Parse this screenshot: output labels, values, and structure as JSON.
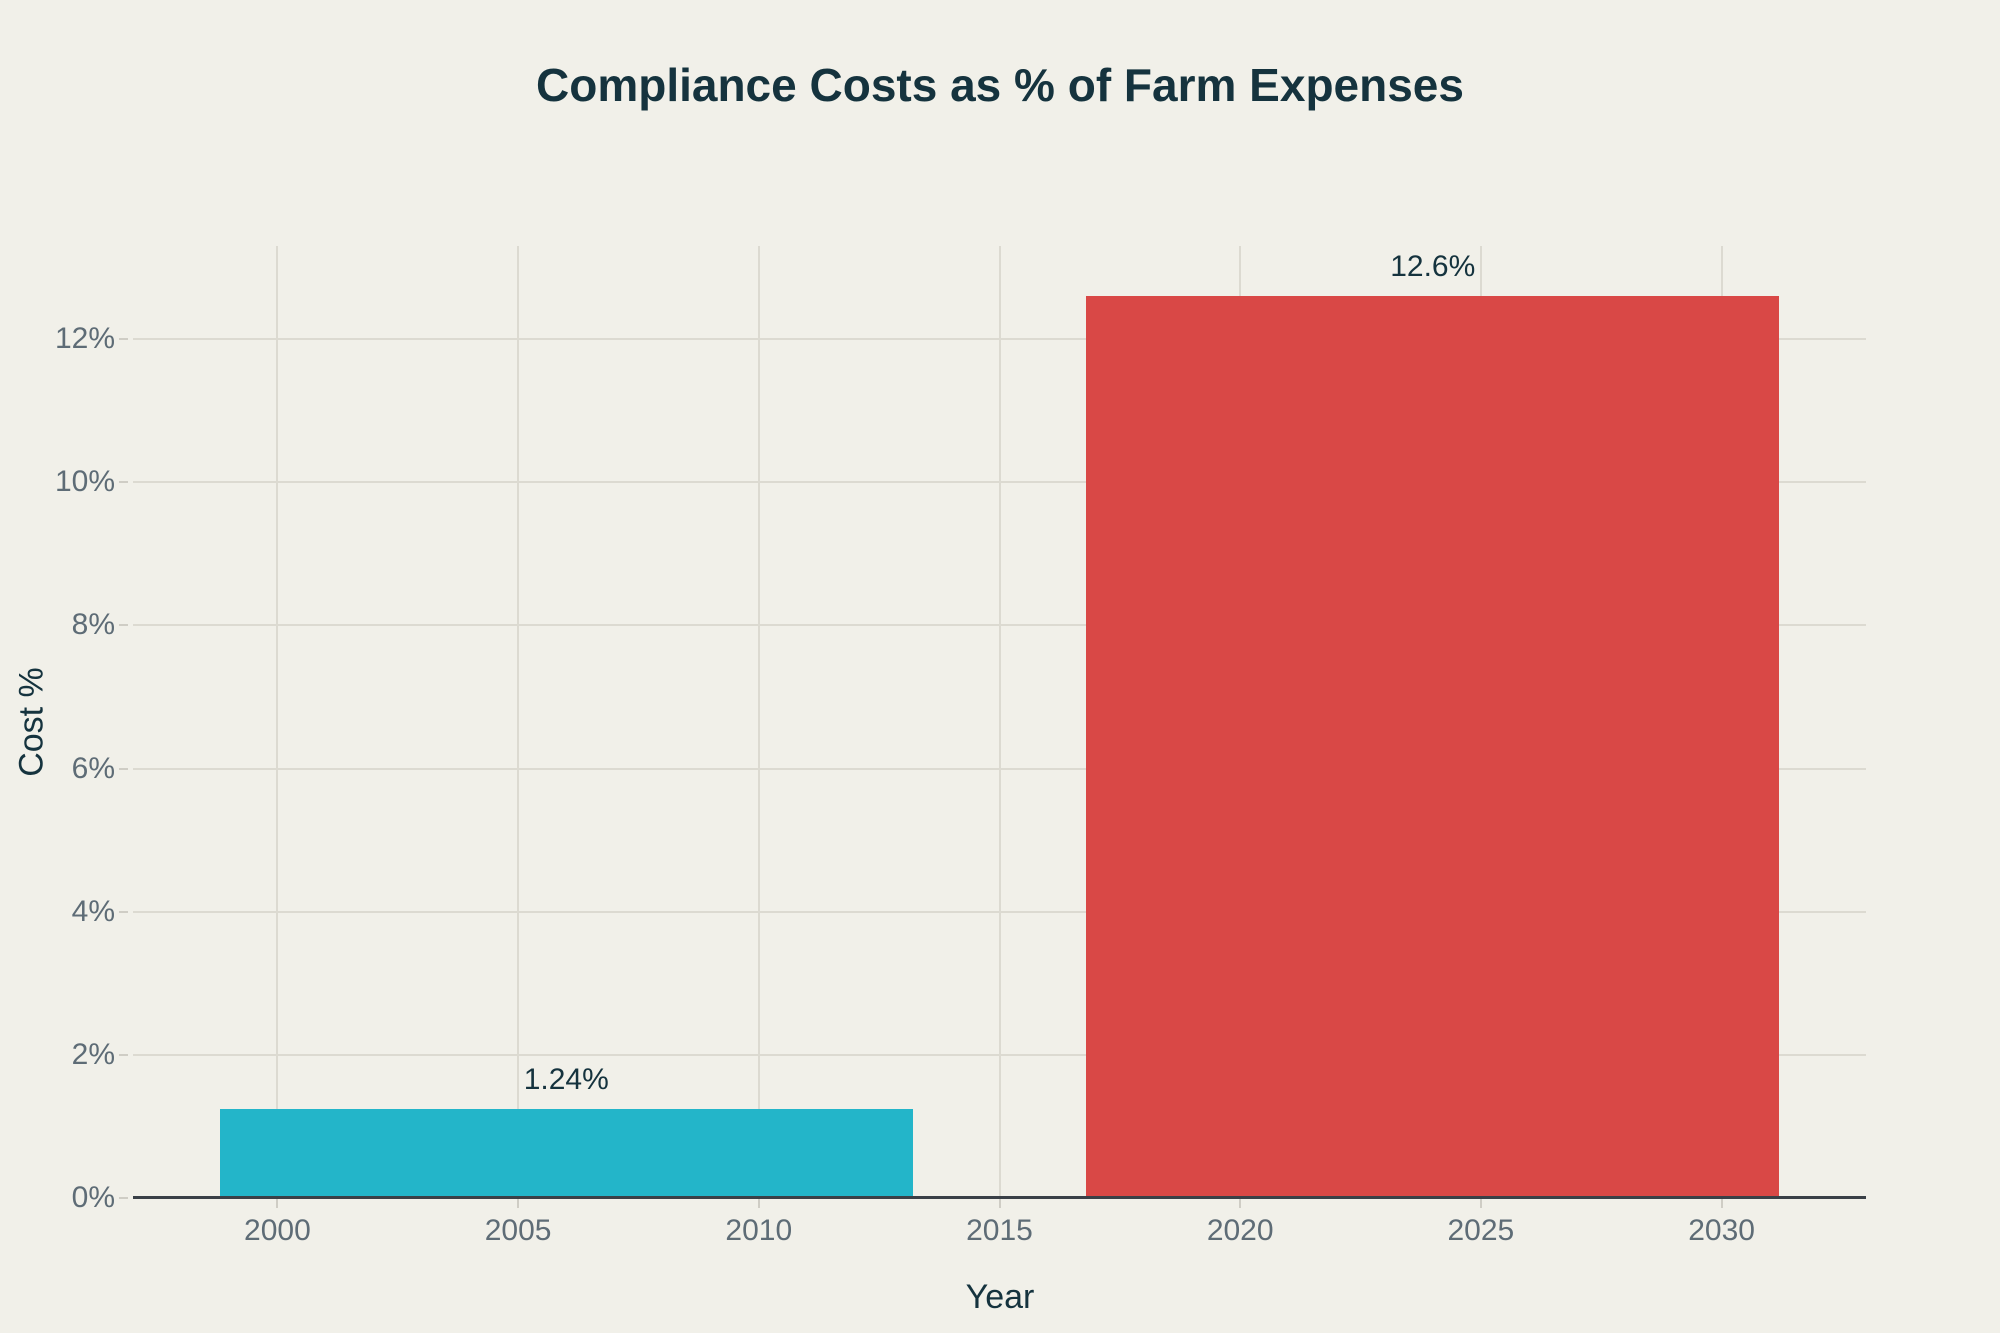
{
  "colors": {
    "background": "#f1f0e9",
    "grid": "#dcdad1",
    "axis_line": "#3a4047",
    "tick_label": "#5e6c76",
    "tick_mark": "#cfcdc5",
    "text_dark": "#15333e",
    "bar_teal": "#23b5c9",
    "bar_red": "#d94846"
  },
  "chart_data": {
    "type": "bar",
    "title": "Compliance Costs as % of Farm Expenses",
    "xlabel": "Year",
    "ylabel": "Cost %",
    "xlim": [
      1997,
      2033
    ],
    "ylim": [
      0,
      13.3
    ],
    "grid": true,
    "legend": "none",
    "bars": [
      {
        "x_start": 1998.8,
        "x_end": 2013.2,
        "x_center": 2006,
        "value": 1.24,
        "label": "1.24%",
        "color": "#23b5c9"
      },
      {
        "x_start": 2016.8,
        "x_end": 2031.2,
        "x_center": 2024,
        "value": 12.6,
        "label": "12.6%",
        "color": "#d94846"
      }
    ],
    "x_ticks": [
      {
        "v": 2000,
        "label": "2000"
      },
      {
        "v": 2005,
        "label": "2005"
      },
      {
        "v": 2010,
        "label": "2010"
      },
      {
        "v": 2015,
        "label": "2015"
      },
      {
        "v": 2020,
        "label": "2020"
      },
      {
        "v": 2025,
        "label": "2025"
      },
      {
        "v": 2030,
        "label": "2030"
      }
    ],
    "y_ticks": [
      {
        "v": 0,
        "label": "0%"
      },
      {
        "v": 2,
        "label": "2%"
      },
      {
        "v": 4,
        "label": "4%"
      },
      {
        "v": 6,
        "label": "6%"
      },
      {
        "v": 8,
        "label": "8%"
      },
      {
        "v": 10,
        "label": "10%"
      },
      {
        "v": 12,
        "label": "12%"
      }
    ]
  }
}
